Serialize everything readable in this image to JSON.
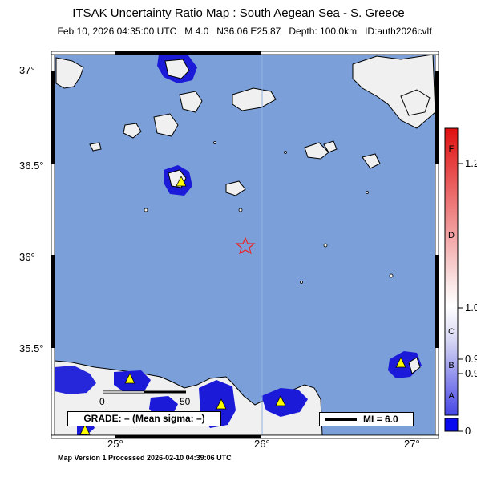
{
  "header": {
    "title": "ITSAK Uncertainty Ratio Map : South Aegean Sea - S. Greece",
    "subtitle": "Feb 10, 2026 04:35:00 UTC   M 4.0   N36.06 E25.87   Depth: 100.0km   ID:auth2026cvlf"
  },
  "map": {
    "region": "South Aegean Sea - S. Greece",
    "latitude_ticks": [
      "37°",
      "36.5°",
      "36°",
      "35.5°"
    ],
    "longitude_ticks": [
      "25°",
      "26°",
      "27°"
    ],
    "epicenter": {
      "lat": 36.06,
      "lon": 25.87,
      "symbol": "star-icon",
      "color": "#e8262b"
    },
    "stations_symbol": "triangle-icon",
    "station_color": "#ffff00",
    "sea_color": "#7b9fd8",
    "land_color": "#f0f0f0",
    "high_uncertainty_color": "#1a1ad8",
    "scale_bar": {
      "labels": [
        "0",
        "50"
      ]
    },
    "grade_text": "GRADE: – (Mean sigma: –)",
    "mi_legend": "MI = 6.0"
  },
  "colorbar": {
    "values": [
      "1.2",
      "1.0",
      "0.9",
      "0.9",
      "0"
    ],
    "grades": [
      "F",
      "D",
      "C",
      "B",
      "A"
    ],
    "colors": {
      "top": "#e01010",
      "middle": "#ffffff",
      "bottom": "#4646e6",
      "base": "#0a0af0"
    }
  },
  "footer": {
    "text": "Map Version 1 Processed 2026-02-10 04:39:06 UTC"
  }
}
